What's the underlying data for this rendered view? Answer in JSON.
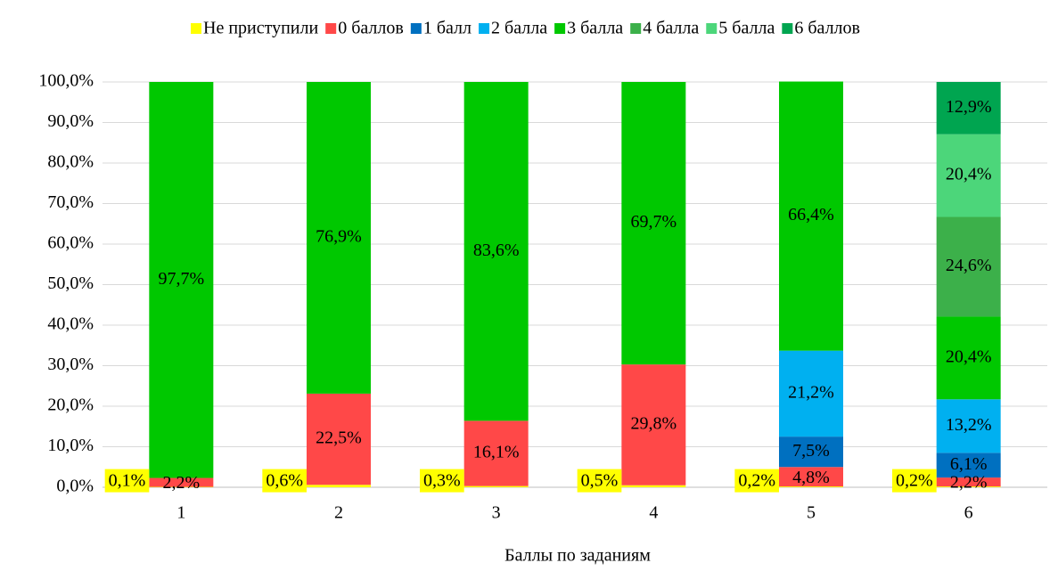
{
  "chart_data": {
    "type": "stacked_bar",
    "x_label": "Баллы по заданиям",
    "categories": [
      "1",
      "2",
      "3",
      "4",
      "5",
      "6"
    ],
    "ylim": [
      0,
      100
    ],
    "yticks": [
      {
        "value": 0,
        "label": "0,0%"
      },
      {
        "value": 10,
        "label": "10,0%"
      },
      {
        "value": 20,
        "label": "20,0%"
      },
      {
        "value": 30,
        "label": "30,0%"
      },
      {
        "value": 40,
        "label": "40,0%"
      },
      {
        "value": 50,
        "label": "50,0%"
      },
      {
        "value": 60,
        "label": "60,0%"
      },
      {
        "value": 70,
        "label": "70,0%"
      },
      {
        "value": 80,
        "label": "80,0%"
      },
      {
        "value": 90,
        "label": "90,0%"
      },
      {
        "value": 100,
        "label": "100,0%"
      }
    ],
    "grid": true,
    "legend": "top",
    "series": [
      {
        "name": "Не приступили",
        "color": "#ffff00",
        "values": [
          0.1,
          0.6,
          0.3,
          0.5,
          0.2,
          0.2
        ],
        "value_labels": [
          "0,1%",
          "0,6%",
          "0,3%",
          "0,5%",
          "0,2%",
          "0,2%"
        ]
      },
      {
        "name": "0 баллов",
        "color": "#ff4848",
        "values": [
          2.2,
          22.5,
          16.1,
          29.8,
          4.8,
          2.2
        ],
        "value_labels": [
          "2,2%",
          "22,5%",
          "16,1%",
          "29,8%",
          "4,8%",
          "2,2%"
        ]
      },
      {
        "name": "1 балл",
        "color": "#0070c0",
        "values": [
          null,
          null,
          null,
          null,
          7.5,
          6.1
        ],
        "value_labels": [
          null,
          null,
          null,
          null,
          "7,5%",
          "6,1%"
        ]
      },
      {
        "name": "2 балла",
        "color": "#00b0f0",
        "values": [
          null,
          null,
          null,
          null,
          21.2,
          13.2
        ],
        "value_labels": [
          null,
          null,
          null,
          null,
          "21,2%",
          "13,2%"
        ]
      },
      {
        "name": "3 балла",
        "color": "#00c800",
        "values": [
          97.7,
          76.9,
          83.6,
          69.7,
          66.4,
          20.4
        ],
        "value_labels": [
          "97,7%",
          "76,9%",
          "83,6%",
          "69,7%",
          "66,4%",
          "20,4%"
        ]
      },
      {
        "name": "4 балла",
        "color": "#3cb04a",
        "values": [
          null,
          null,
          null,
          null,
          null,
          24.6
        ],
        "value_labels": [
          null,
          null,
          null,
          null,
          null,
          "24,6%"
        ]
      },
      {
        "name": "5 балла",
        "color": "#4cd67a",
        "values": [
          null,
          null,
          null,
          null,
          null,
          20.4
        ],
        "value_labels": [
          null,
          null,
          null,
          null,
          null,
          "20,4%"
        ]
      },
      {
        "name": "6 баллов",
        "color": "#00a550",
        "values": [
          null,
          null,
          null,
          null,
          null,
          12.9
        ],
        "value_labels": [
          null,
          null,
          null,
          null,
          null,
          "12,9%"
        ]
      }
    ]
  }
}
